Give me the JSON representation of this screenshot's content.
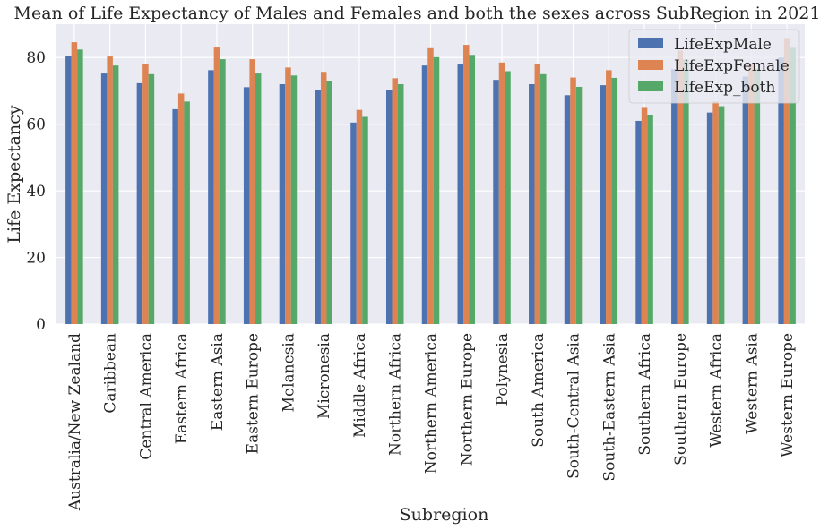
{
  "chart_data": {
    "type": "bar",
    "title": "Mean of Life Expectancy of  Males and Females and both the sexes across SubRegion in 2021",
    "xlabel": "Subregion",
    "ylabel": "Life Expectancy",
    "ylim": [
      0,
      90
    ],
    "yticks": [
      0,
      20,
      40,
      60,
      80
    ],
    "grid": true,
    "legend_position": "top-right",
    "categories": [
      "Australia/New Zealand",
      "Caribbean",
      "Central America",
      "Eastern Africa",
      "Eastern Asia",
      "Eastern Europe",
      "Melanesia",
      "Micronesia",
      "Middle Africa",
      "Northern Africa",
      "Northern America",
      "Northern Europe",
      "Polynesia",
      "South America",
      "South-Central Asia",
      "South-Eastern Asia",
      "Southern Africa",
      "Southern Europe",
      "Western Africa",
      "Western Asia",
      "Western Europe"
    ],
    "series": [
      {
        "name": "LifeExpMale",
        "color": "#4c72b0",
        "values": [
          80.5,
          75.2,
          72.3,
          64.5,
          76.2,
          71.1,
          72.0,
          70.3,
          60.5,
          70.3,
          77.6,
          77.9,
          73.3,
          72.0,
          68.7,
          71.7,
          61.0,
          76.5,
          63.5,
          74.3,
          80.0
        ]
      },
      {
        "name": "LifeExpFemale",
        "color": "#dd8452",
        "values": [
          84.6,
          80.3,
          77.9,
          69.2,
          83.0,
          79.5,
          77.0,
          75.7,
          64.3,
          73.8,
          82.8,
          83.8,
          78.5,
          77.9,
          74.0,
          76.2,
          64.9,
          82.1,
          66.8,
          78.2,
          85.6
        ]
      },
      {
        "name": "LifeExp_both",
        "color": "#55a868",
        "values": [
          82.4,
          77.6,
          75.0,
          66.8,
          79.5,
          75.2,
          74.6,
          73.0,
          62.2,
          72.0,
          80.1,
          80.8,
          75.9,
          75.0,
          71.2,
          73.9,
          62.8,
          79.4,
          65.4,
          76.6,
          82.9
        ]
      }
    ]
  }
}
